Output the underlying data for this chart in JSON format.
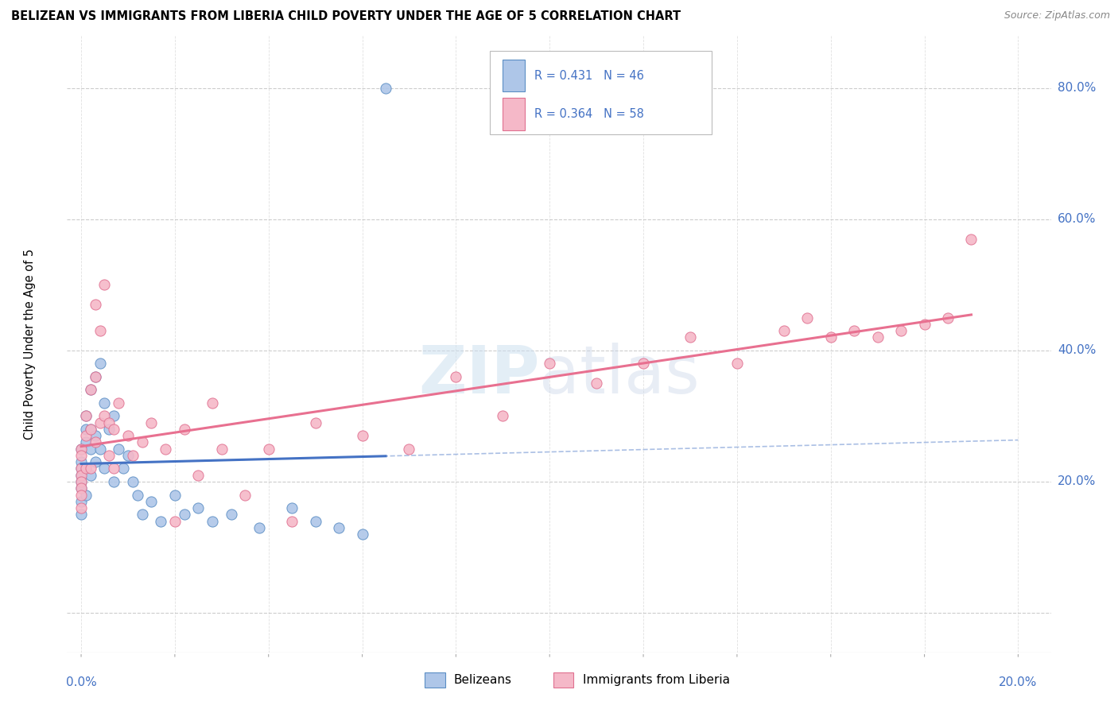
{
  "title": "BELIZEAN VS IMMIGRANTS FROM LIBERIA CHILD POVERTY UNDER THE AGE OF 5 CORRELATION CHART",
  "source": "Source: ZipAtlas.com",
  "ylabel": "Child Poverty Under the Age of 5",
  "yticks": [
    0.0,
    0.2,
    0.4,
    0.6,
    0.8
  ],
  "ytick_labels": [
    "",
    "20.0%",
    "40.0%",
    "60.0%",
    "80.0%"
  ],
  "xlim": [
    -0.003,
    0.207
  ],
  "ylim": [
    -0.06,
    0.88
  ],
  "legend_r1": "R = 0.431",
  "legend_n1": "N = 46",
  "legend_r2": "R = 0.364",
  "legend_n2": "N = 58",
  "color_blue_fill": "#aec6e8",
  "color_blue_edge": "#5b8ec4",
  "color_pink_fill": "#f5b8c8",
  "color_pink_edge": "#e07090",
  "color_blue_line": "#4472C4",
  "color_pink_line": "#e87090",
  "axis_label_color": "#4472C4",
  "grid_color": "#cccccc",
  "title_fontsize": 10.5,
  "source_fontsize": 9,
  "label_fontsize": 11,
  "belizean_x": [
    0.0,
    0.0,
    0.0,
    0.0,
    0.0,
    0.0,
    0.0,
    0.0,
    0.001,
    0.001,
    0.001,
    0.001,
    0.001,
    0.002,
    0.002,
    0.002,
    0.002,
    0.003,
    0.003,
    0.003,
    0.004,
    0.004,
    0.005,
    0.005,
    0.006,
    0.007,
    0.007,
    0.008,
    0.009,
    0.01,
    0.011,
    0.012,
    0.013,
    0.015,
    0.017,
    0.02,
    0.022,
    0.025,
    0.028,
    0.032,
    0.038,
    0.045,
    0.05,
    0.055,
    0.06,
    0.065
  ],
  "belizean_y": [
    0.25,
    0.23,
    0.22,
    0.21,
    0.2,
    0.19,
    0.17,
    0.15,
    0.3,
    0.28,
    0.26,
    0.22,
    0.18,
    0.34,
    0.28,
    0.25,
    0.21,
    0.36,
    0.27,
    0.23,
    0.38,
    0.25,
    0.32,
    0.22,
    0.28,
    0.3,
    0.2,
    0.25,
    0.22,
    0.24,
    0.2,
    0.18,
    0.15,
    0.17,
    0.14,
    0.18,
    0.15,
    0.16,
    0.14,
    0.15,
    0.13,
    0.16,
    0.14,
    0.13,
    0.12,
    0.8
  ],
  "liberia_x": [
    0.0,
    0.0,
    0.0,
    0.0,
    0.0,
    0.0,
    0.0,
    0.0,
    0.001,
    0.001,
    0.001,
    0.002,
    0.002,
    0.002,
    0.003,
    0.003,
    0.003,
    0.004,
    0.004,
    0.005,
    0.005,
    0.006,
    0.006,
    0.007,
    0.007,
    0.008,
    0.01,
    0.011,
    0.013,
    0.015,
    0.018,
    0.02,
    0.022,
    0.025,
    0.028,
    0.03,
    0.035,
    0.04,
    0.045,
    0.05,
    0.06,
    0.07,
    0.08,
    0.09,
    0.1,
    0.11,
    0.12,
    0.13,
    0.14,
    0.15,
    0.155,
    0.16,
    0.165,
    0.17,
    0.175,
    0.18,
    0.185,
    0.19
  ],
  "liberia_y": [
    0.25,
    0.24,
    0.22,
    0.21,
    0.2,
    0.19,
    0.18,
    0.16,
    0.3,
    0.27,
    0.22,
    0.34,
    0.28,
    0.22,
    0.47,
    0.36,
    0.26,
    0.43,
    0.29,
    0.5,
    0.3,
    0.29,
    0.24,
    0.28,
    0.22,
    0.32,
    0.27,
    0.24,
    0.26,
    0.29,
    0.25,
    0.14,
    0.28,
    0.21,
    0.32,
    0.25,
    0.18,
    0.25,
    0.14,
    0.29,
    0.27,
    0.25,
    0.36,
    0.3,
    0.38,
    0.35,
    0.38,
    0.42,
    0.38,
    0.43,
    0.45,
    0.42,
    0.43,
    0.42,
    0.43,
    0.44,
    0.45,
    0.57
  ]
}
